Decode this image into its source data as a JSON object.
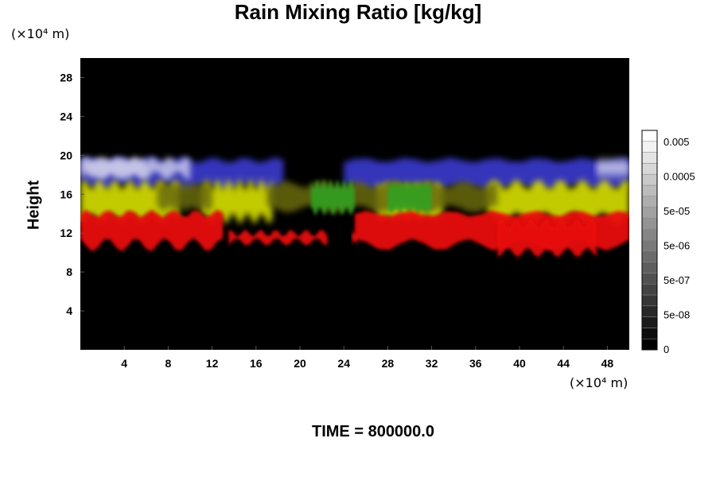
{
  "chart_data": {
    "type": "heatmap",
    "title": "Rain Mixing Ratio [kg/kg]",
    "ylabel": "Height",
    "y_unit": "(×10⁴ m)",
    "x_unit": "(×10⁴ m)",
    "footer": "TIME = 800000.0",
    "xlim": [
      0,
      50
    ],
    "ylim": [
      0,
      30
    ],
    "x_ticks": [
      "4",
      "8",
      "12",
      "16",
      "20",
      "24",
      "28",
      "32",
      "36",
      "40",
      "44",
      "48"
    ],
    "x_tick_values": [
      4,
      8,
      12,
      16,
      20,
      24,
      28,
      32,
      36,
      40,
      44,
      48
    ],
    "y_ticks": [
      "4",
      "8",
      "12",
      "16",
      "20",
      "24",
      "28"
    ],
    "y_tick_values": [
      4,
      8,
      12,
      16,
      20,
      24,
      28
    ],
    "background_color": "#000000",
    "colorbar": {
      "labels": [
        "0.005",
        "0.0005",
        "5e-05",
        "5e-06",
        "5e-07",
        "5e-08",
        "0"
      ],
      "levels": 20,
      "colors": [
        "#000000",
        "#ffffff"
      ]
    },
    "layers": [
      {
        "color": "#c8c8e8",
        "band": "top",
        "y_range": [
          17.5,
          19.5
        ]
      },
      {
        "color": "#3a3ad0",
        "band": "upper",
        "y_range": [
          17,
          19.5
        ]
      },
      {
        "color": "#d8e000",
        "band": "middle",
        "y_range": [
          13.5,
          17
        ]
      },
      {
        "color": "#30a020",
        "band": "middle",
        "y_range": [
          14,
          17
        ]
      },
      {
        "color": "#e81010",
        "band": "lower",
        "y_range": [
          10.5,
          14
        ]
      }
    ]
  }
}
